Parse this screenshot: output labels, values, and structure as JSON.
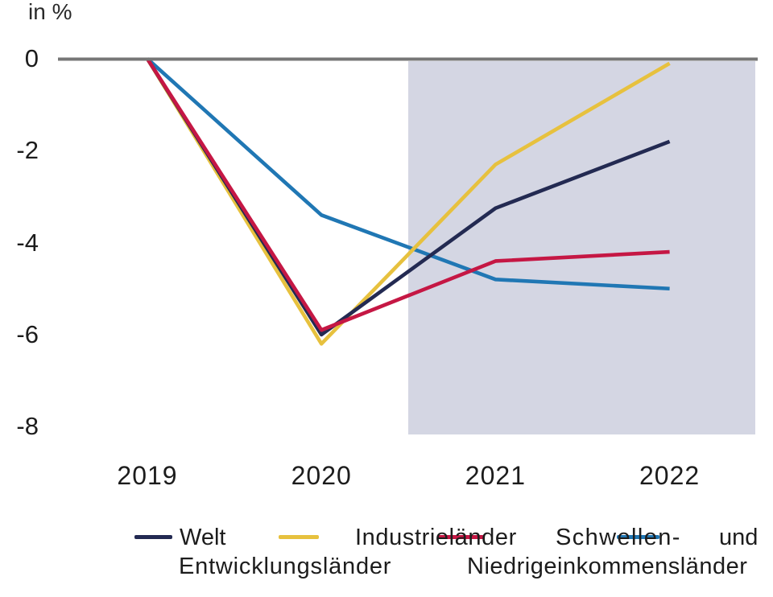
{
  "chart_data": {
    "type": "line",
    "title": "",
    "unit_label": "in %",
    "xlabel": "",
    "ylabel": "in %",
    "categories": [
      "2019",
      "2020",
      "2021",
      "2022"
    ],
    "series": [
      {
        "name": "Welt",
        "color": "#232a52",
        "values": [
          0,
          -6.0,
          -3.25,
          -1.8
        ]
      },
      {
        "name": "Industrieländer",
        "color": "#e7c13e",
        "values": [
          0,
          -6.2,
          -2.3,
          -0.1
        ]
      },
      {
        "name": "Schwellen- und Entwicklungsländer",
        "color": "#c51744",
        "values": [
          0,
          -5.9,
          -4.4,
          -4.2
        ]
      },
      {
        "name": "Niedrigeinkommensländer",
        "color": "#2077b4",
        "values": [
          0,
          -3.4,
          -4.8,
          -5.0
        ]
      }
    ],
    "y_ticks": [
      0,
      -2,
      -4,
      -6,
      -8
    ],
    "y_tick_labels": [
      "0",
      "-2",
      "-4",
      "-6",
      "-8"
    ],
    "ylim": [
      -8.2,
      0.3
    ],
    "grid": false,
    "legend_position": "bottom",
    "zero_line_color": "#767676",
    "forecast_region": {
      "from_category_index": 1.5,
      "to_category_index": 3.5,
      "color": "#d4d6e3"
    }
  },
  "legend": {
    "row1": [
      "Welt",
      "Industrieländer",
      "Schwellen-",
      "und"
    ],
    "row2": [
      "Entwicklungsländer",
      "Niedrigeinkommensländer"
    ]
  }
}
